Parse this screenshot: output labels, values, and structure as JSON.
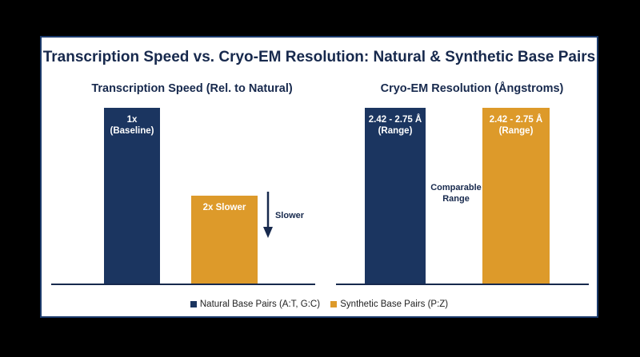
{
  "colors": {
    "natural": "#1b3560",
    "synthetic": "#dd9a2a",
    "text": "#17294d",
    "frame": "#1b3a6b"
  },
  "title": "Transcription Speed vs. Cryo-EM Resolution: Natural & Synthetic Base Pairs",
  "chart_data": [
    {
      "type": "bar",
      "title": "Transcription Speed (Rel. to Natural)",
      "categories": [
        "Natural Base Pairs (A:T, G:C)",
        "Synthetic Base Pairs (P:Z)"
      ],
      "values": [
        1,
        0.5
      ],
      "ylim": [
        0,
        1
      ],
      "data_labels": [
        [
          "1x",
          "(Baseline)"
        ],
        [
          "2x Slower"
        ]
      ],
      "annotation": "Slower",
      "grid": false
    },
    {
      "type": "bar",
      "title": "Cryo-EM Resolution (Ångstroms)",
      "categories": [
        "Natural Base Pairs (A:T, G:C)",
        "Synthetic Base Pairs (P:Z)"
      ],
      "values": [
        1,
        1
      ],
      "ylim": [
        0,
        1
      ],
      "data_labels": [
        [
          "2.42 - 2.75 Å",
          "(Range)"
        ],
        [
          "2.42 - 2.75 Å",
          "(Range)"
        ]
      ],
      "annotation": [
        "Comparable",
        "Range"
      ],
      "grid": false
    }
  ],
  "legend": {
    "placement": "bottom",
    "items": [
      {
        "label": "Natural Base Pairs (A:T, G:C)",
        "color": "#1b3560"
      },
      {
        "label": "Synthetic Base Pairs (P:Z)",
        "color": "#dd9a2a"
      }
    ]
  }
}
